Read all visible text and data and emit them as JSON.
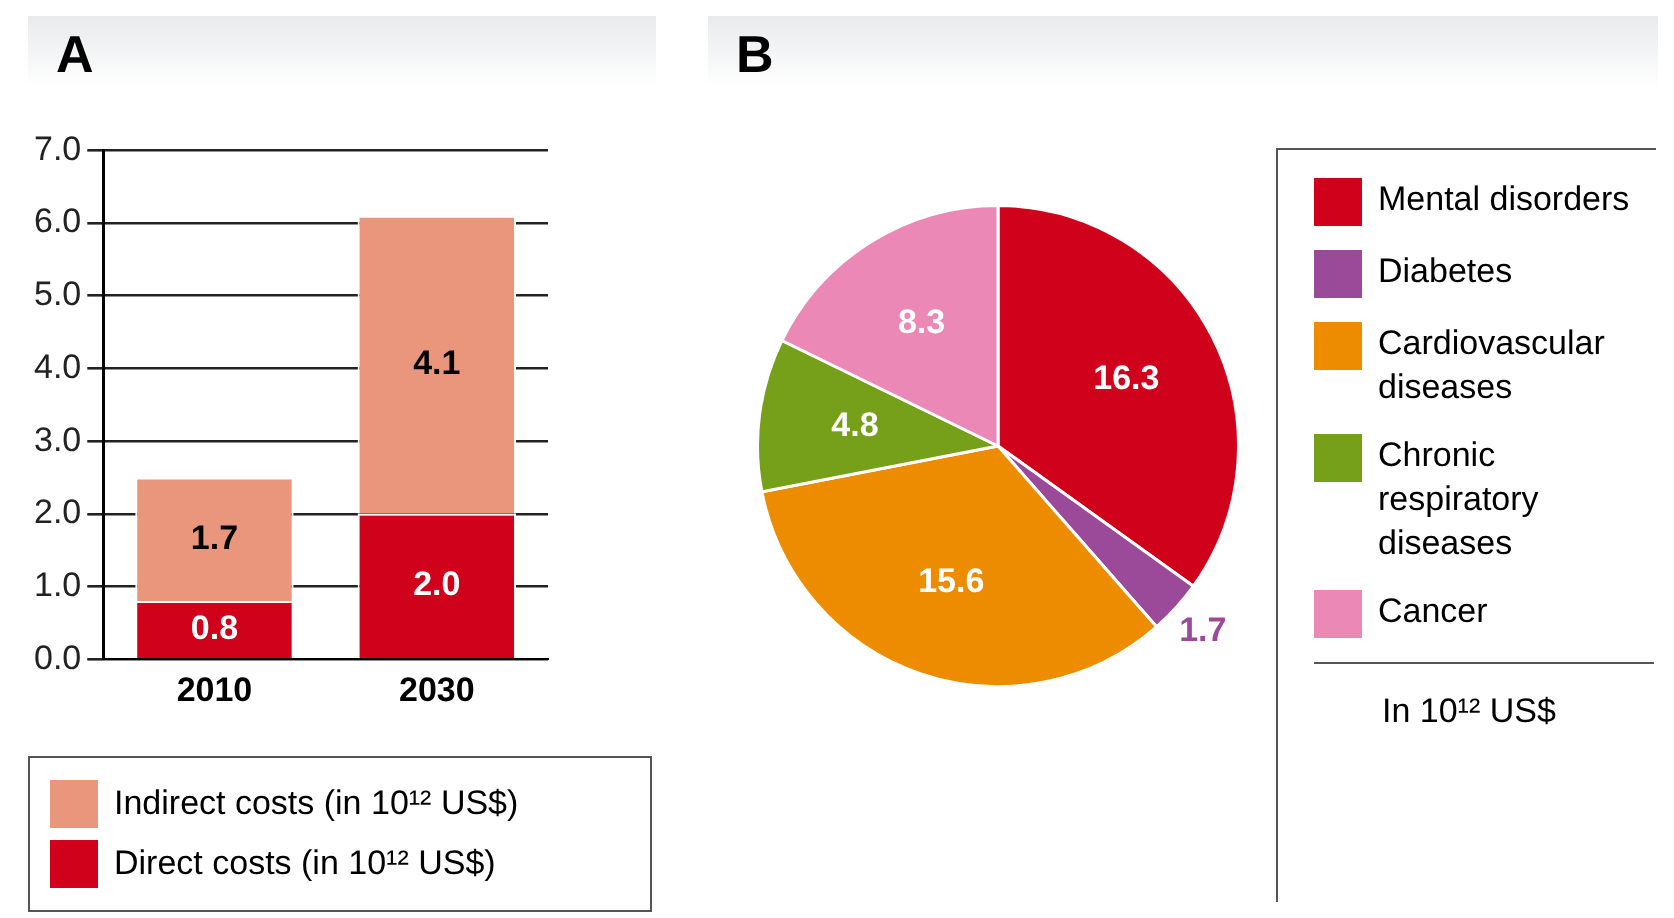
{
  "chart_data": [
    {
      "type": "bar",
      "title": "A",
      "categories": [
        "2010",
        "2030"
      ],
      "stacked": true,
      "series": [
        {
          "name": "Direct costs (in 10¹² US$)",
          "color": "#d0021b",
          "values": [
            0.8,
            2.0
          ],
          "value_labels": [
            "0.8",
            "2.0"
          ]
        },
        {
          "name": "Indirect costs (in 10¹² US$)",
          "color": "#ea967c",
          "values": [
            1.7,
            4.1
          ],
          "value_labels": [
            "1.7",
            "4.1"
          ]
        }
      ],
      "ylim": [
        0,
        7
      ],
      "yticks": [
        {
          "value": 0,
          "label": "0.0"
        },
        {
          "value": 1,
          "label": "1.0"
        },
        {
          "value": 2,
          "label": "2.0"
        },
        {
          "value": 3,
          "label": "3.0"
        },
        {
          "value": 4,
          "label": "4.0"
        },
        {
          "value": 5,
          "label": "5.0"
        },
        {
          "value": 6,
          "label": "6.0"
        },
        {
          "value": 7,
          "label": "7.0"
        }
      ],
      "grid": "y",
      "legend": "bottom"
    },
    {
      "type": "pie",
      "title": "B",
      "categories": [
        "Mental disorders",
        "Diabetes",
        "Cardiovascular diseases",
        "Chronic respiratory diseases",
        "Cancer"
      ],
      "values": [
        16.3,
        1.7,
        15.6,
        4.8,
        8.3
      ],
      "colors": [
        "#d0021b",
        "#9a4a98",
        "#ee8c00",
        "#76a01a",
        "#ec88b6"
      ],
      "legend": "right",
      "legend_title": "In 10¹² US$",
      "data_labels": true
    }
  ]
}
